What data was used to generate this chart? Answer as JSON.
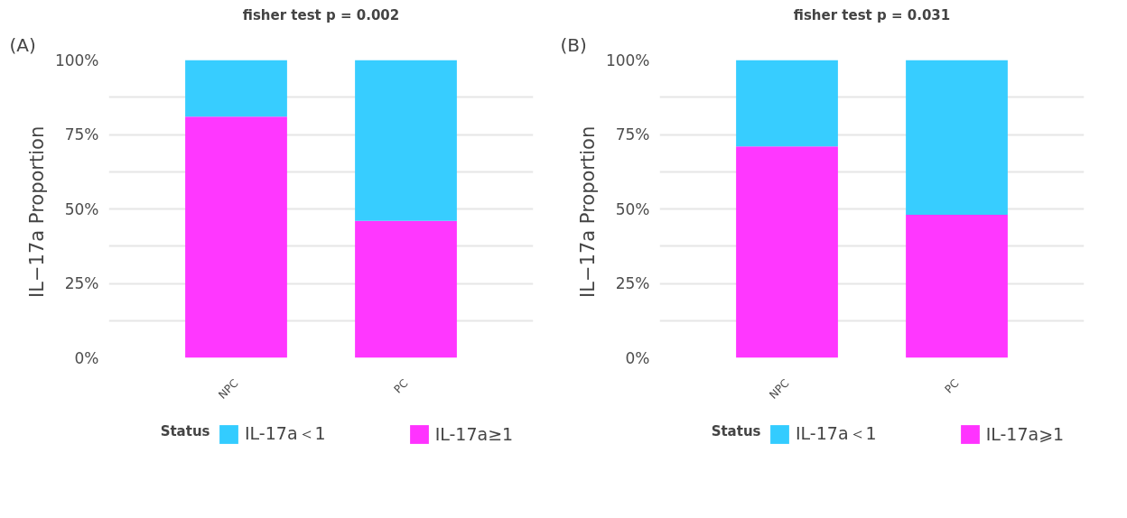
{
  "chart_data": [
    {
      "type": "bar",
      "title": "fisher test p = 0.002",
      "ylabel": "IL−17a  Proportion",
      "legend_title": "Status",
      "annotations": [
        "(A)"
      ],
      "stacked": true,
      "categories": [
        "NPC",
        "PC"
      ],
      "series": [
        {
          "name": "IL-17a≥1",
          "color": "#ff33ff",
          "values": [
            81,
            46
          ]
        },
        {
          "name": "IL-17a＜1",
          "color": "#33ccff",
          "values": [
            19,
            54
          ]
        }
      ],
      "ylim": [
        0,
        100
      ],
      "yticks": [
        {
          "value": 0,
          "label": "0%"
        },
        {
          "value": 12.5,
          "label": null
        },
        {
          "value": 25,
          "label": "25%"
        },
        {
          "value": 37.5,
          "label": null
        },
        {
          "value": 50,
          "label": "50%"
        },
        {
          "value": 62.5,
          "label": null
        },
        {
          "value": 75,
          "label": "75%"
        },
        {
          "value": 87.5,
          "label": null
        },
        {
          "value": 100,
          "label": "100%"
        }
      ],
      "grid": "y",
      "legend": "bottom"
    },
    {
      "type": "bar",
      "title": "fisher test p = 0.031",
      "ylabel": "IL−17a  Proportion",
      "legend_title": "Status",
      "annotations": [
        "(B)"
      ],
      "stacked": true,
      "categories": [
        "NPC",
        "PC"
      ],
      "series": [
        {
          "name": "IL-17a⩾1",
          "color": "#ff33ff",
          "values": [
            71,
            48
          ]
        },
        {
          "name": "IL-17a＜1",
          "color": "#33ccff",
          "values": [
            29,
            52
          ]
        }
      ],
      "ylim": [
        0,
        100
      ],
      "yticks": [
        {
          "value": 0,
          "label": "0%"
        },
        {
          "value": 12.5,
          "label": null
        },
        {
          "value": 25,
          "label": "25%"
        },
        {
          "value": 37.5,
          "label": null
        },
        {
          "value": 50,
          "label": "50%"
        },
        {
          "value": 62.5,
          "label": null
        },
        {
          "value": 75,
          "label": "75%"
        },
        {
          "value": 87.5,
          "label": null
        },
        {
          "value": 100,
          "label": "100%"
        }
      ],
      "grid": "y",
      "legend": "bottom"
    }
  ]
}
